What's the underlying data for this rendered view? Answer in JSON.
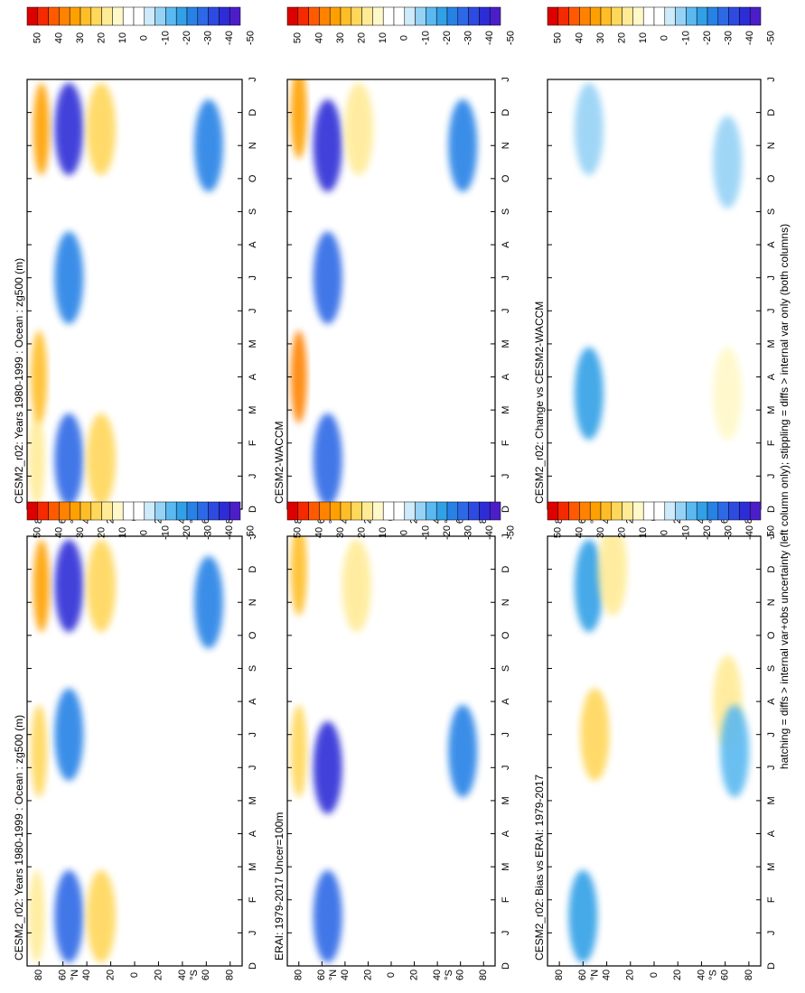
{
  "figure": {
    "footer": "hatching = diffs > internal var+obs uncertainty (left column only); stippling = diffs > internal var only (both columns)",
    "colorbar": {
      "labels": [
        "50",
        "40",
        "30",
        "20",
        "10",
        "0",
        "-10",
        "-20",
        "-30",
        "-40",
        "-50"
      ],
      "colors": [
        "#dc0000",
        "#f52a00",
        "#ff5a00",
        "#ff8200",
        "#ffa000",
        "#ffbe28",
        "#ffd75a",
        "#ffeb96",
        "#fff8c8",
        "#ffffff",
        "#ffffff",
        "#cdebfa",
        "#96d2f5",
        "#5ab9f0",
        "#32a0e6",
        "#2882e6",
        "#2d69e6",
        "#2d4be1",
        "#2d2dd7",
        "#4b1ec8"
      ]
    },
    "month_labels": [
      "D",
      "J",
      "F",
      "M",
      "A",
      "M",
      "J",
      "J",
      "A",
      "S",
      "O",
      "N",
      "D",
      "J"
    ],
    "lat_labels": [
      "80",
      "60",
      "40",
      "20",
      "0",
      "20",
      "40",
      "60",
      "80"
    ],
    "lat_label_N": "°N",
    "lat_label_S": "°S"
  },
  "chart_data": [
    {
      "type": "heatmap",
      "title": "CESM2_r02: Years 1980-1999 : Ocean : zg500 (m)",
      "x_axis": "month",
      "y_axis": "latitude",
      "ylim": [
        -90,
        90
      ],
      "clim": [
        -50,
        50
      ],
      "features": [
        {
          "lat": 82,
          "month": 1.5,
          "value": 15
        },
        {
          "lat": 80,
          "month": 6.5,
          "value": 20
        },
        {
          "lat": 78,
          "month": 11.5,
          "value": 30
        },
        {
          "lat": 55,
          "month": 1.5,
          "value": -30
        },
        {
          "lat": 55,
          "month": 7,
          "value": -25
        },
        {
          "lat": 55,
          "month": 11.5,
          "value": -40
        },
        {
          "lat": 28,
          "month": 1.5,
          "value": 20
        },
        {
          "lat": 28,
          "month": 11.5,
          "value": 20
        },
        {
          "lat": -62,
          "month": 11,
          "value": -25
        }
      ]
    },
    {
      "type": "heatmap",
      "title": "ERAI: 1979-2017 Uncer=100m",
      "x_axis": "month",
      "y_axis": "latitude",
      "ylim": [
        -90,
        90
      ],
      "clim": [
        -50,
        50
      ],
      "features": [
        {
          "lat": 80,
          "month": 6.5,
          "value": 20
        },
        {
          "lat": 80,
          "month": 12,
          "value": 25
        },
        {
          "lat": 55,
          "month": 1.5,
          "value": -30
        },
        {
          "lat": 55,
          "month": 6,
          "value": -40
        },
        {
          "lat": 30,
          "month": 11.5,
          "value": 15
        },
        {
          "lat": -62,
          "month": 6.5,
          "value": -25
        }
      ]
    },
    {
      "type": "heatmap",
      "title": "CESM2_r02: Bias vs ERAI: 1979-2017",
      "x_axis": "month",
      "y_axis": "latitude",
      "ylim": [
        -90,
        90
      ],
      "clim": [
        -50,
        50
      ],
      "features": [
        {
          "lat": 60,
          "month": 1.5,
          "value": -20
        },
        {
          "lat": 50,
          "month": 7,
          "value": 20
        },
        {
          "lat": 55,
          "month": 11.5,
          "value": -20
        },
        {
          "lat": 35,
          "month": 12,
          "value": 15
        },
        {
          "lat": -62,
          "month": 8,
          "value": 15
        },
        {
          "lat": -68,
          "month": 6.5,
          "value": -15
        }
      ]
    },
    {
      "type": "heatmap",
      "title": "CESM2_r02: Years 1980-1999 : Ocean : zg500 (m)",
      "x_axis": "month",
      "y_axis": "latitude",
      "ylim": [
        -90,
        90
      ],
      "clim": [
        -50,
        50
      ],
      "features": [
        {
          "lat": 82,
          "month": 1.5,
          "value": 15
        },
        {
          "lat": 80,
          "month": 4,
          "value": 25
        },
        {
          "lat": 78,
          "month": 11.5,
          "value": 30
        },
        {
          "lat": 55,
          "month": 1.5,
          "value": -30
        },
        {
          "lat": 55,
          "month": 7,
          "value": -25
        },
        {
          "lat": 55,
          "month": 11.5,
          "value": -40
        },
        {
          "lat": 28,
          "month": 1.5,
          "value": 20
        },
        {
          "lat": 28,
          "month": 11.5,
          "value": 20
        },
        {
          "lat": -62,
          "month": 11,
          "value": -25
        }
      ]
    },
    {
      "type": "heatmap",
      "title": "CESM2-WACCM",
      "x_axis": "month",
      "y_axis": "latitude",
      "ylim": [
        -90,
        90
      ],
      "clim": [
        -50,
        50
      ],
      "features": [
        {
          "lat": 80,
          "month": 4,
          "value": 35
        },
        {
          "lat": 80,
          "month": 12,
          "value": 30
        },
        {
          "lat": 55,
          "month": 1.5,
          "value": -30
        },
        {
          "lat": 55,
          "month": 7,
          "value": -30
        },
        {
          "lat": 55,
          "month": 11,
          "value": -40
        },
        {
          "lat": 28,
          "month": 11.5,
          "value": 15
        },
        {
          "lat": -62,
          "month": 11,
          "value": -25
        }
      ]
    },
    {
      "type": "heatmap",
      "title": "CESM2_r02: Change vs CESM2-WACCM",
      "x_axis": "month",
      "y_axis": "latitude",
      "ylim": [
        -90,
        90
      ],
      "clim": [
        -50,
        50
      ],
      "features": [
        {
          "lat": 55,
          "month": 3.5,
          "value": -20
        },
        {
          "lat": 55,
          "month": 11.5,
          "value": -10
        },
        {
          "lat": 30,
          "month": 9,
          "value": 5
        },
        {
          "lat": -62,
          "month": 3.5,
          "value": 10
        },
        {
          "lat": -62,
          "month": 10.5,
          "value": -10
        }
      ]
    }
  ]
}
